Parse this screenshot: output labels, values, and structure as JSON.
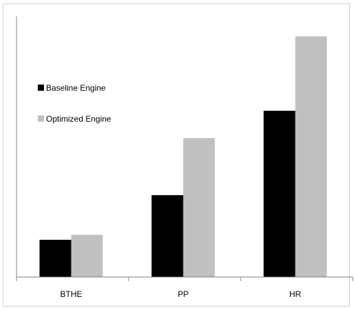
{
  "chart_data": {
    "type": "bar",
    "categories": [
      "BTHE",
      "PP",
      "HR"
    ],
    "series": [
      {
        "name": "Baseline Engine",
        "values": [
          15,
          33,
          67
        ]
      },
      {
        "name": "Optimized Engine",
        "values": [
          17,
          56,
          97
        ]
      }
    ],
    "ylim": [
      0,
      105
    ],
    "grid": false,
    "legend": "top-left",
    "colors": {
      "Baseline Engine": "#000000",
      "Optimized Engine": "#c0c0c0"
    }
  }
}
